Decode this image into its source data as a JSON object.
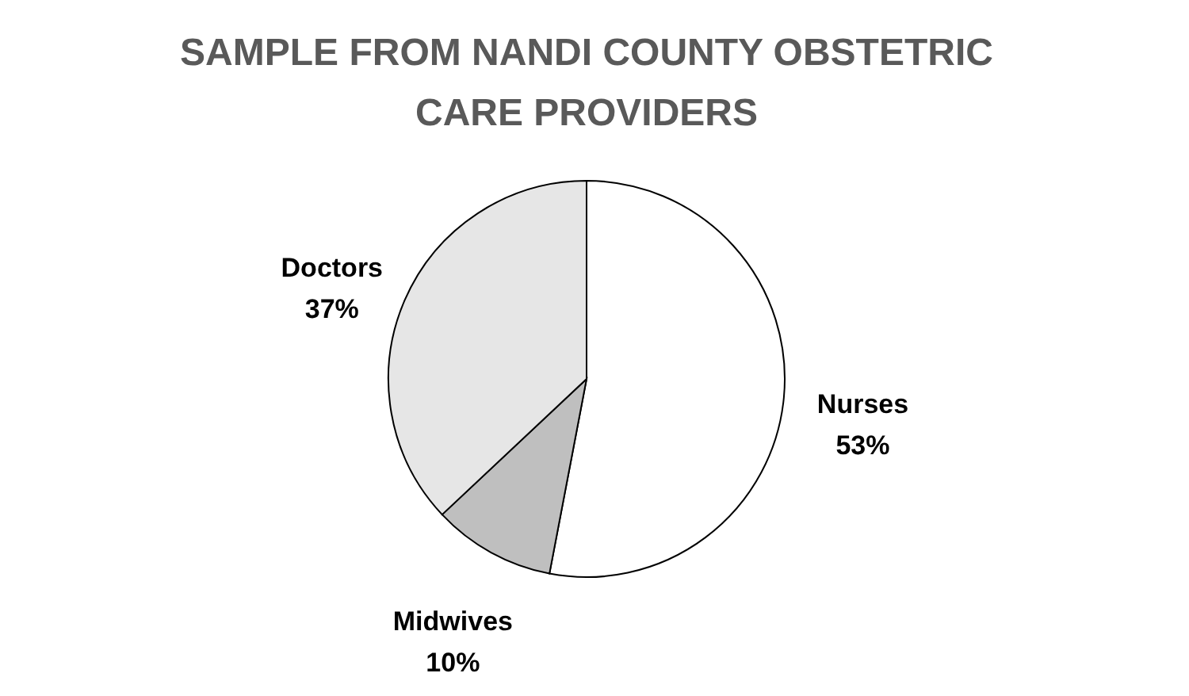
{
  "chart_data": {
    "type": "pie",
    "title": "SAMPLE FROM NANDI COUNTY OBSTETRIC CARE PROVIDERS",
    "categories": [
      "Nurses",
      "Midwives",
      "Doctors"
    ],
    "values": [
      53,
      10,
      37
    ],
    "colors": [
      "#ffffff",
      "#bfbfbf",
      "#e6e6e6"
    ],
    "value_labels": [
      "53%",
      "10%",
      "37%"
    ],
    "legend": false
  }
}
